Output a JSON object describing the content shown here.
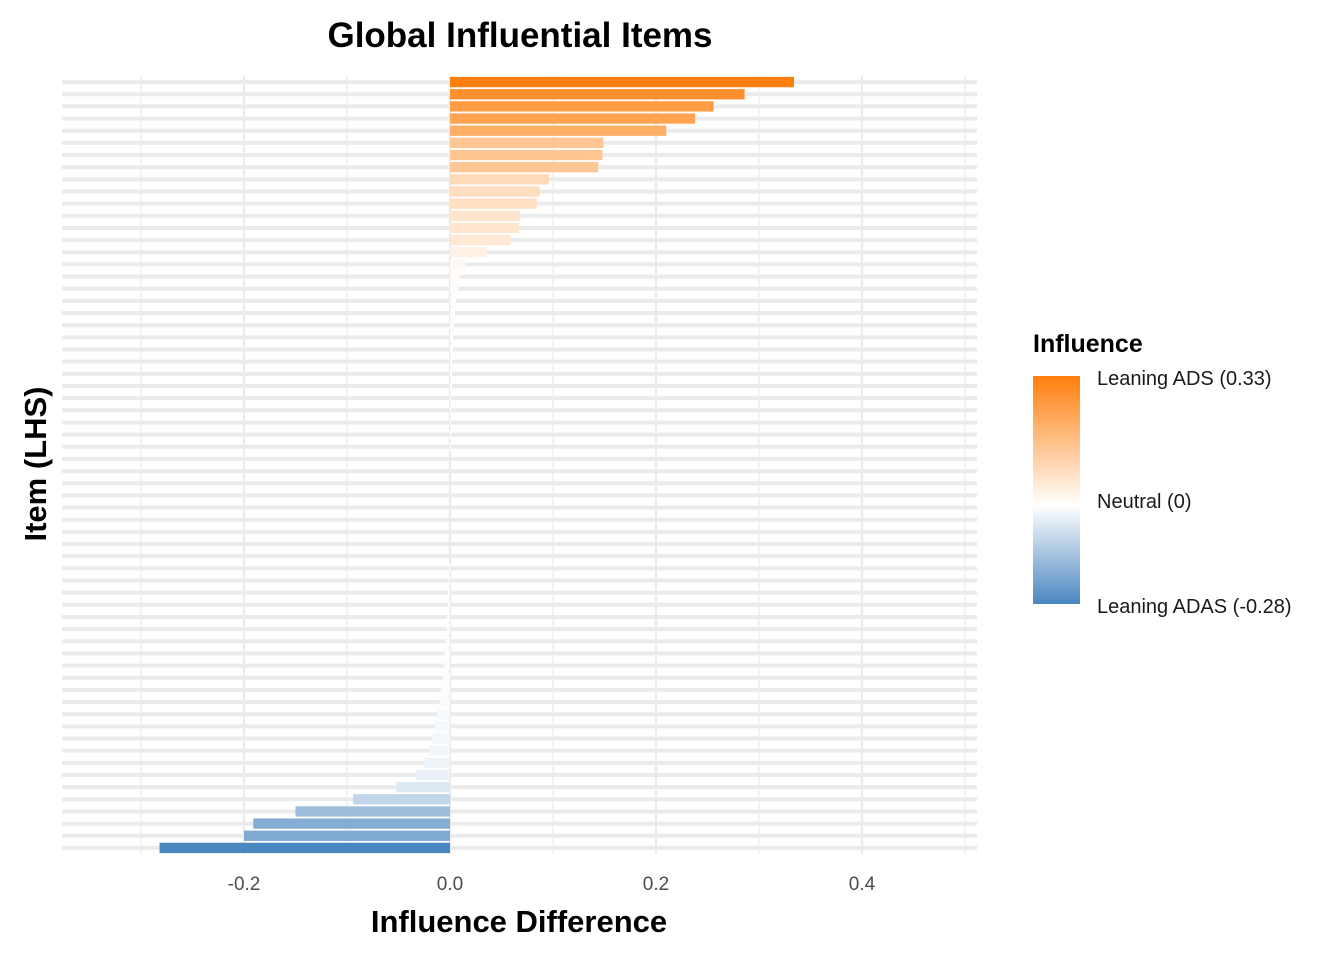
{
  "chart_data": {
    "type": "bar",
    "orientation": "horizontal",
    "title": "Global Influential Items",
    "xlabel": "Influence Difference",
    "ylabel": "Item (LHS)",
    "xlim": [
      -0.375,
      0.51
    ],
    "x_ticks": [
      -0.2,
      0.0,
      0.2,
      0.4
    ],
    "x_tick_labels": [
      "-0.2",
      "0.0",
      "0.2",
      "0.4"
    ],
    "grid": true,
    "legend_position": "right",
    "values": [
      0.334,
      0.286,
      0.256,
      0.238,
      0.21,
      0.149,
      0.148,
      0.144,
      0.096,
      0.087,
      0.084,
      0.068,
      0.067,
      0.059,
      0.036,
      0.015,
      0.01,
      0.008,
      0.006,
      0.005,
      0.004,
      0.003,
      0.003,
      0.002,
      0.002,
      0.002,
      0.001,
      0.001,
      0.001,
      0.001,
      0.001,
      0.0,
      0.0,
      0.0,
      0.0,
      0.0,
      0.0,
      0.0,
      0.0,
      0.0,
      -0.001,
      -0.001,
      -0.002,
      -0.002,
      -0.003,
      -0.003,
      -0.004,
      -0.005,
      -0.006,
      -0.007,
      -0.008,
      -0.01,
      -0.012,
      -0.015,
      -0.018,
      -0.02,
      -0.025,
      -0.033,
      -0.052,
      -0.094,
      -0.15,
      -0.191,
      -0.2,
      -0.282
    ],
    "legend": {
      "title": "Influence",
      "labels": [
        "Leaning ADS (0.33)",
        "Neutral (0)",
        "Leaning ADAS (-0.28)"
      ],
      "scale_values": [
        0.33,
        0.0,
        -0.28
      ]
    },
    "colors": {
      "high": "#ff7f0e",
      "mid": "#ffffff",
      "low": "#4a86c0",
      "grid": "#ebebeb"
    }
  }
}
